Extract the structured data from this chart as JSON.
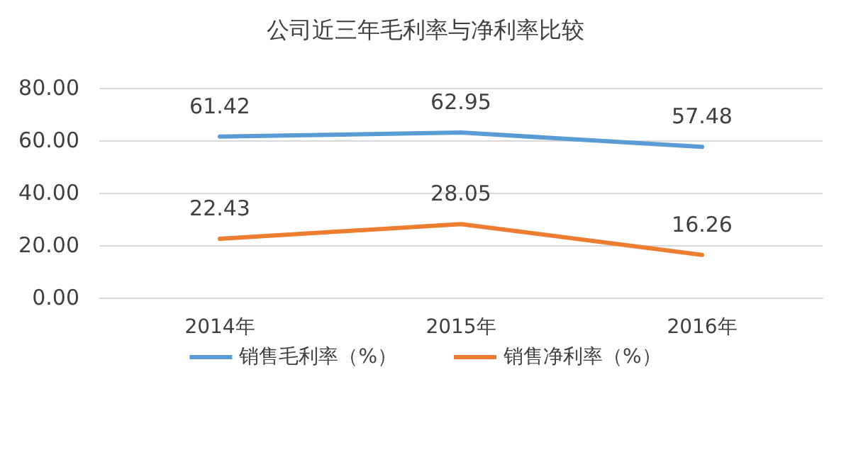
{
  "chart_data": {
    "type": "line",
    "title": "公司近三年毛利率与净利率比较",
    "categories": [
      "2014年",
      "2015年",
      "2016年"
    ],
    "series": [
      {
        "name": "销售毛利率（%）",
        "color": "#5b9bd5",
        "values": [
          61.42,
          62.95,
          57.48
        ]
      },
      {
        "name": "销售净利率（%）",
        "color": "#ed7d31",
        "values": [
          22.43,
          28.05,
          16.26
        ]
      }
    ],
    "ylim": [
      0,
      80
    ],
    "yticks": [
      {
        "value": 0,
        "label": "0.00"
      },
      {
        "value": 20,
        "label": "20.00"
      },
      {
        "value": 40,
        "label": "40.00"
      },
      {
        "value": 60,
        "label": "60.00"
      },
      {
        "value": 80,
        "label": "80.00"
      }
    ],
    "grid": "y",
    "legend": "bottom",
    "data_labels": true,
    "marker": "none",
    "line_style": "solid"
  }
}
